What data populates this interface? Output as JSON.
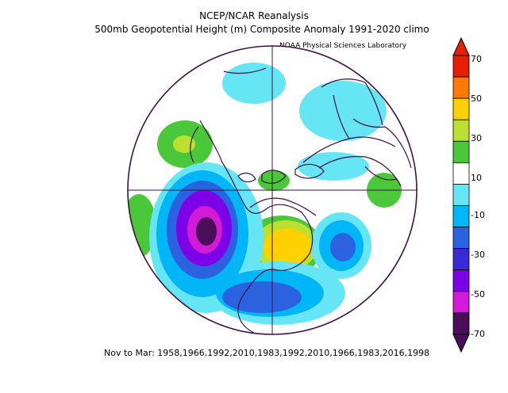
{
  "title": {
    "line1": "NCEP/NCAR Reanalysis",
    "line2": "500mb Geopotential Height (m) Composite Anomaly 1991-2020 climo",
    "line3": "NOAA Physical Sciences Laboratory"
  },
  "footer": "Nov to Mar: 1958,1966,1992,2010,1983,1992,2010,1966,1983,2016,1998",
  "colorbar": {
    "labels": [
      "70",
      "50",
      "30",
      "10",
      "-10",
      "-30",
      "-50",
      "-70"
    ],
    "colors": [
      "#e81e00",
      "#ff7a00",
      "#ffd100",
      "#bbe030",
      "#4ac83a",
      "#ffffff",
      "#66e6f5",
      "#00b6f7",
      "#2b62e0",
      "#3a2ad6",
      "#7d00e6",
      "#d21bd6",
      "#4a0e58"
    ]
  }
}
